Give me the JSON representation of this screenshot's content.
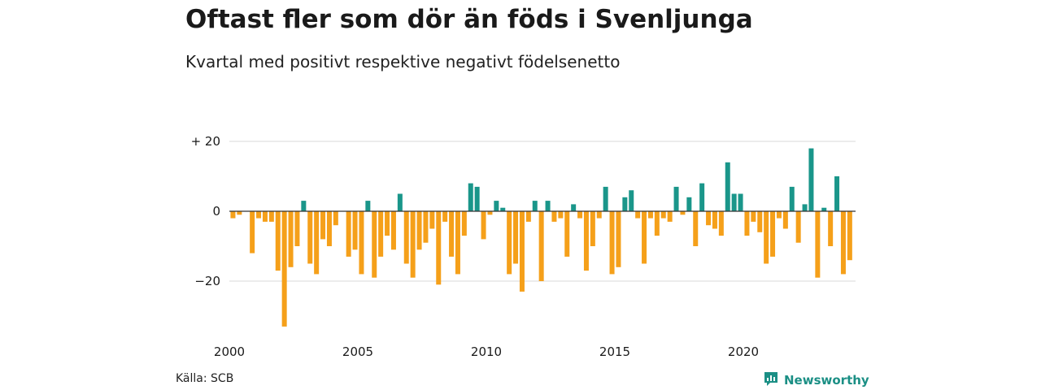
{
  "title": "Oftast fler som dör än föds i Svenljunga",
  "subtitle": "Kvartal med positivt respektive negativt födelsenetto",
  "source": "Källa: SCB",
  "brand": "Newsworthy",
  "colors": {
    "positive": "#1a968a",
    "negative": "#f5a01a",
    "grid": "#d9d9d9",
    "baseline": "#333333"
  },
  "chart_data": {
    "type": "bar",
    "title": "Oftast fler som dör än föds i Svenljunga",
    "subtitle": "Kvartal med positivt respektive negativt födelsenetto",
    "xlabel": "",
    "ylabel": "",
    "ylim": [
      -35,
      23
    ],
    "grid": true,
    "y_ticks": [
      {
        "value": 20,
        "label": "+ 20"
      },
      {
        "value": 0,
        "label": "0"
      },
      {
        "value": -20,
        "label": "−20"
      }
    ],
    "x_ticks": [
      "2000",
      "2005",
      "2010",
      "2015",
      "2020"
    ],
    "start_year": 2000,
    "frequency": "quarterly",
    "values": [
      -2,
      -1,
      0,
      -12,
      -2,
      -3,
      -3,
      -17,
      -33,
      -16,
      -10,
      3,
      -15,
      -18,
      -8,
      -10,
      -4,
      0,
      -13,
      -11,
      -18,
      3,
      -19,
      -13,
      -7,
      -11,
      5,
      -15,
      -19,
      -11,
      -9,
      -5,
      -21,
      -3,
      -13,
      -18,
      -7,
      8,
      7,
      -8,
      -1,
      3,
      1,
      -18,
      -15,
      -23,
      -3,
      3,
      -20,
      3,
      -3,
      -2,
      -13,
      2,
      -2,
      -17,
      -10,
      -2,
      7,
      -18,
      -16,
      4,
      6,
      -2,
      -15,
      -2,
      -7,
      -2,
      -3,
      7,
      -1,
      4,
      -10,
      8,
      -4,
      -5,
      -7,
      14,
      5,
      5,
      -7,
      -3,
      -6,
      -15,
      -13,
      -2,
      -5,
      7,
      -9,
      2,
      18,
      -19,
      1,
      -10,
      10,
      -18,
      -14
    ]
  }
}
